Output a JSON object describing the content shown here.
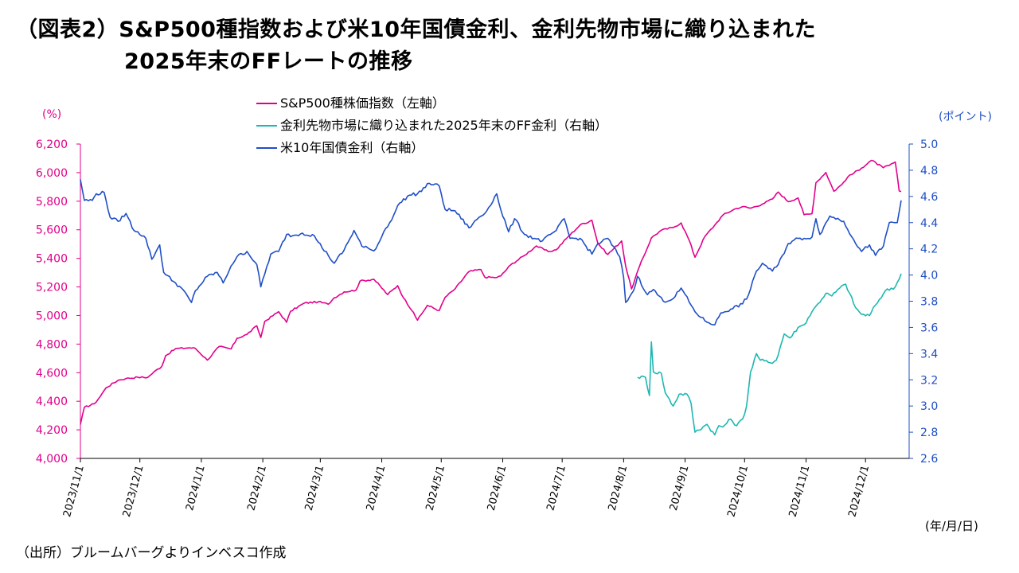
{
  "title": {
    "line1": "（図表2）S&P500種指数および米10年国債金利、金利先物市場に織り込まれた",
    "line2": "2025年末のFFレートの推移"
  },
  "source": "（出所）ブルームバーグよりインベスコ作成",
  "chart_data": {
    "type": "line",
    "left_axis": {
      "unit": "(%)",
      "min": 4000,
      "max": 6200,
      "ticks": [
        "4,000",
        "4,200",
        "4,400",
        "4,600",
        "4,800",
        "5,000",
        "5,200",
        "5,400",
        "5,600",
        "5,800",
        "6,000",
        "6,200"
      ],
      "color": "#E2008B"
    },
    "right_axis": {
      "unit": "(ポイント)",
      "min": 2.6,
      "max": 5.0,
      "ticks": [
        "2.6",
        "2.8",
        "3.0",
        "3.2",
        "3.4",
        "3.6",
        "3.8",
        "4.0",
        "4.2",
        "4.4",
        "4.6",
        "4.8",
        "5.0"
      ],
      "color": "#1F4FC6"
    },
    "x_axis": {
      "unit": "(年/月/日)",
      "start": "2023-11-01",
      "end": "2024-12-23",
      "tick_labels": [
        "2023/11/1",
        "2023/12/1",
        "2024/1/1",
        "2024/2/1",
        "2024/3/1",
        "2024/4/1",
        "2024/5/1",
        "2024/6/1",
        "2024/7/1",
        "2024/8/1",
        "2024/9/1",
        "2024/10/1",
        "2024/11/1",
        "2024/12/1"
      ],
      "tick_dates": [
        "2023-11-01",
        "2023-12-01",
        "2024-01-01",
        "2024-02-01",
        "2024-03-01",
        "2024-04-01",
        "2024-05-01",
        "2024-06-01",
        "2024-07-01",
        "2024-08-01",
        "2024-09-01",
        "2024-10-01",
        "2024-11-01",
        "2024-12-01"
      ]
    },
    "grid": false,
    "legend_position": "top",
    "series": [
      {
        "name": "S&P500種株価指数（左軸）",
        "axis": "left",
        "color": "#E2008B",
        "points": [
          [
            "2023-11-01",
            4237
          ],
          [
            "2023-11-03",
            4358
          ],
          [
            "2023-11-08",
            4382
          ],
          [
            "2023-11-10",
            4415
          ],
          [
            "2023-11-14",
            4495
          ],
          [
            "2023-11-20",
            4547
          ],
          [
            "2023-11-24",
            4559
          ],
          [
            "2023-11-30",
            4568
          ],
          [
            "2023-12-05",
            4567
          ],
          [
            "2023-12-08",
            4604
          ],
          [
            "2023-12-12",
            4643
          ],
          [
            "2023-12-14",
            4719
          ],
          [
            "2023-12-19",
            4768
          ],
          [
            "2023-12-26",
            4774
          ],
          [
            "2023-12-29",
            4770
          ],
          [
            "2024-01-04",
            4688
          ],
          [
            "2024-01-10",
            4783
          ],
          [
            "2024-01-16",
            4766
          ],
          [
            "2024-01-19",
            4840
          ],
          [
            "2024-01-24",
            4868
          ],
          [
            "2024-01-29",
            4928
          ],
          [
            "2024-01-31",
            4846
          ],
          [
            "2024-02-02",
            4959
          ],
          [
            "2024-02-09",
            5027
          ],
          [
            "2024-02-13",
            4953
          ],
          [
            "2024-02-15",
            5030
          ],
          [
            "2024-02-22",
            5087
          ],
          [
            "2024-02-29",
            5096
          ],
          [
            "2024-03-05",
            5079
          ],
          [
            "2024-03-08",
            5124
          ],
          [
            "2024-03-13",
            5165
          ],
          [
            "2024-03-19",
            5178
          ],
          [
            "2024-03-21",
            5241
          ],
          [
            "2024-03-28",
            5254
          ],
          [
            "2024-04-04",
            5147
          ],
          [
            "2024-04-09",
            5209
          ],
          [
            "2024-04-12",
            5123
          ],
          [
            "2024-04-17",
            5022
          ],
          [
            "2024-04-19",
            4967
          ],
          [
            "2024-04-24",
            5071
          ],
          [
            "2024-04-30",
            5035
          ],
          [
            "2024-05-03",
            5128
          ],
          [
            "2024-05-08",
            5187
          ],
          [
            "2024-05-15",
            5308
          ],
          [
            "2024-05-21",
            5321
          ],
          [
            "2024-05-23",
            5268
          ],
          [
            "2024-05-29",
            5266
          ],
          [
            "2024-05-31",
            5277
          ],
          [
            "2024-06-05",
            5354
          ],
          [
            "2024-06-12",
            5421
          ],
          [
            "2024-06-18",
            5487
          ],
          [
            "2024-06-24",
            5447
          ],
          [
            "2024-06-28",
            5460
          ],
          [
            "2024-07-03",
            5537
          ],
          [
            "2024-07-10",
            5633
          ],
          [
            "2024-07-16",
            5667
          ],
          [
            "2024-07-19",
            5505
          ],
          [
            "2024-07-24",
            5427
          ],
          [
            "2024-07-31",
            5522
          ],
          [
            "2024-08-02",
            5346
          ],
          [
            "2024-08-05",
            5186
          ],
          [
            "2024-08-09",
            5344
          ],
          [
            "2024-08-15",
            5543
          ],
          [
            "2024-08-20",
            5597
          ],
          [
            "2024-08-26",
            5616
          ],
          [
            "2024-08-30",
            5648
          ],
          [
            "2024-09-03",
            5528
          ],
          [
            "2024-09-06",
            5408
          ],
          [
            "2024-09-11",
            5554
          ],
          [
            "2024-09-16",
            5633
          ],
          [
            "2024-09-20",
            5702
          ],
          [
            "2024-09-26",
            5745
          ],
          [
            "2024-09-30",
            5762
          ],
          [
            "2024-10-04",
            5751
          ],
          [
            "2024-10-10",
            5780
          ],
          [
            "2024-10-15",
            5815
          ],
          [
            "2024-10-18",
            5864
          ],
          [
            "2024-10-23",
            5797
          ],
          [
            "2024-10-28",
            5823
          ],
          [
            "2024-10-31",
            5705
          ],
          [
            "2024-11-04",
            5712
          ],
          [
            "2024-11-06",
            5929
          ],
          [
            "2024-11-11",
            6001
          ],
          [
            "2024-11-15",
            5870
          ],
          [
            "2024-11-19",
            5916
          ],
          [
            "2024-11-22",
            5969
          ],
          [
            "2024-11-29",
            6032
          ],
          [
            "2024-12-04",
            6086
          ],
          [
            "2024-12-10",
            6034
          ],
          [
            "2024-12-13",
            6051
          ],
          [
            "2024-12-16",
            6074
          ],
          [
            "2024-12-18",
            5872
          ],
          [
            "2024-12-19",
            5867
          ]
        ]
      },
      {
        "name": "金利先物市場に織り込まれた2025年末のFF金利（右軸）",
        "axis": "right",
        "color": "#1CB8B0",
        "points": [
          [
            "2024-08-08",
            3.22
          ],
          [
            "2024-08-12",
            3.22
          ],
          [
            "2024-08-14",
            3.08
          ],
          [
            "2024-08-15",
            3.49
          ],
          [
            "2024-08-16",
            3.26
          ],
          [
            "2024-08-20",
            3.25
          ],
          [
            "2024-08-22",
            3.1
          ],
          [
            "2024-08-26",
            3.0
          ],
          [
            "2024-08-29",
            3.09
          ],
          [
            "2024-09-02",
            3.09
          ],
          [
            "2024-09-04",
            3.02
          ],
          [
            "2024-09-06",
            2.8
          ],
          [
            "2024-09-10",
            2.84
          ],
          [
            "2024-09-12",
            2.86
          ],
          [
            "2024-09-16",
            2.78
          ],
          [
            "2024-09-18",
            2.85
          ],
          [
            "2024-09-20",
            2.84
          ],
          [
            "2024-09-24",
            2.9
          ],
          [
            "2024-09-27",
            2.85
          ],
          [
            "2024-09-30",
            2.9
          ],
          [
            "2024-10-02",
            3.0
          ],
          [
            "2024-10-04",
            3.26
          ],
          [
            "2024-10-07",
            3.4
          ],
          [
            "2024-10-09",
            3.35
          ],
          [
            "2024-10-14",
            3.33
          ],
          [
            "2024-10-17",
            3.35
          ],
          [
            "2024-10-21",
            3.55
          ],
          [
            "2024-10-24",
            3.52
          ],
          [
            "2024-10-28",
            3.6
          ],
          [
            "2024-10-31",
            3.62
          ],
          [
            "2024-11-04",
            3.72
          ],
          [
            "2024-11-07",
            3.78
          ],
          [
            "2024-11-11",
            3.86
          ],
          [
            "2024-11-14",
            3.84
          ],
          [
            "2024-11-18",
            3.9
          ],
          [
            "2024-11-21",
            3.93
          ],
          [
            "2024-11-26",
            3.75
          ],
          [
            "2024-11-29",
            3.7
          ],
          [
            "2024-12-03",
            3.69
          ],
          [
            "2024-12-06",
            3.77
          ],
          [
            "2024-12-11",
            3.88
          ],
          [
            "2024-12-16",
            3.91
          ],
          [
            "2024-12-19",
            4.01
          ]
        ]
      },
      {
        "name": "米10年国債金利（右軸）",
        "axis": "right",
        "color": "#1F4FC6",
        "points": [
          [
            "2023-11-01",
            4.73
          ],
          [
            "2023-11-03",
            4.57
          ],
          [
            "2023-11-07",
            4.57
          ],
          [
            "2023-11-09",
            4.62
          ],
          [
            "2023-11-13",
            4.63
          ],
          [
            "2023-11-16",
            4.44
          ],
          [
            "2023-11-20",
            4.41
          ],
          [
            "2023-11-24",
            4.47
          ],
          [
            "2023-11-28",
            4.34
          ],
          [
            "2023-11-30",
            4.33
          ],
          [
            "2023-12-04",
            4.28
          ],
          [
            "2023-12-07",
            4.12
          ],
          [
            "2023-12-11",
            4.23
          ],
          [
            "2023-12-13",
            4.02
          ],
          [
            "2023-12-18",
            3.95
          ],
          [
            "2023-12-22",
            3.9
          ],
          [
            "2023-12-27",
            3.79
          ],
          [
            "2023-12-29",
            3.88
          ],
          [
            "2024-01-04",
            3.99
          ],
          [
            "2024-01-09",
            4.02
          ],
          [
            "2024-01-12",
            3.94
          ],
          [
            "2024-01-16",
            4.07
          ],
          [
            "2024-01-19",
            4.14
          ],
          [
            "2024-01-24",
            4.18
          ],
          [
            "2024-01-29",
            4.08
          ],
          [
            "2024-01-31",
            3.91
          ],
          [
            "2024-02-05",
            4.16
          ],
          [
            "2024-02-09",
            4.18
          ],
          [
            "2024-02-13",
            4.31
          ],
          [
            "2024-02-16",
            4.3
          ],
          [
            "2024-02-21",
            4.32
          ],
          [
            "2024-02-27",
            4.3
          ],
          [
            "2024-02-29",
            4.25
          ],
          [
            "2024-03-05",
            4.15
          ],
          [
            "2024-03-08",
            4.09
          ],
          [
            "2024-03-13",
            4.19
          ],
          [
            "2024-03-18",
            4.34
          ],
          [
            "2024-03-22",
            4.22
          ],
          [
            "2024-03-27",
            4.19
          ],
          [
            "2024-03-29",
            4.2
          ],
          [
            "2024-04-02",
            4.33
          ],
          [
            "2024-04-05",
            4.4
          ],
          [
            "2024-04-10",
            4.55
          ],
          [
            "2024-04-15",
            4.61
          ],
          [
            "2024-04-19",
            4.62
          ],
          [
            "2024-04-25",
            4.7
          ],
          [
            "2024-04-30",
            4.68
          ],
          [
            "2024-05-03",
            4.5
          ],
          [
            "2024-05-08",
            4.49
          ],
          [
            "2024-05-15",
            4.36
          ],
          [
            "2024-05-20",
            4.44
          ],
          [
            "2024-05-23",
            4.47
          ],
          [
            "2024-05-29",
            4.62
          ],
          [
            "2024-05-31",
            4.5
          ],
          [
            "2024-06-04",
            4.33
          ],
          [
            "2024-06-07",
            4.43
          ],
          [
            "2024-06-12",
            4.31
          ],
          [
            "2024-06-17",
            4.28
          ],
          [
            "2024-06-21",
            4.26
          ],
          [
            "2024-06-26",
            4.32
          ],
          [
            "2024-06-28",
            4.34
          ],
          [
            "2024-07-02",
            4.43
          ],
          [
            "2024-07-05",
            4.28
          ],
          [
            "2024-07-10",
            4.28
          ],
          [
            "2024-07-16",
            4.16
          ],
          [
            "2024-07-19",
            4.24
          ],
          [
            "2024-07-24",
            4.28
          ],
          [
            "2024-07-30",
            4.14
          ],
          [
            "2024-08-01",
            3.98
          ],
          [
            "2024-08-02",
            3.79
          ],
          [
            "2024-08-06",
            3.88
          ],
          [
            "2024-08-08",
            3.99
          ],
          [
            "2024-08-13",
            3.85
          ],
          [
            "2024-08-16",
            3.89
          ],
          [
            "2024-08-21",
            3.8
          ],
          [
            "2024-08-26",
            3.82
          ],
          [
            "2024-08-30",
            3.9
          ],
          [
            "2024-09-04",
            3.77
          ],
          [
            "2024-09-06",
            3.72
          ],
          [
            "2024-09-11",
            3.65
          ],
          [
            "2024-09-16",
            3.62
          ],
          [
            "2024-09-19",
            3.71
          ],
          [
            "2024-09-24",
            3.74
          ],
          [
            "2024-09-30",
            3.78
          ],
          [
            "2024-10-03",
            3.85
          ],
          [
            "2024-10-07",
            4.03
          ],
          [
            "2024-10-10",
            4.09
          ],
          [
            "2024-10-15",
            4.03
          ],
          [
            "2024-10-18",
            4.08
          ],
          [
            "2024-10-23",
            4.24
          ],
          [
            "2024-10-28",
            4.28
          ],
          [
            "2024-10-31",
            4.28
          ],
          [
            "2024-11-04",
            4.29
          ],
          [
            "2024-11-06",
            4.43
          ],
          [
            "2024-11-08",
            4.31
          ],
          [
            "2024-11-13",
            4.45
          ],
          [
            "2024-11-15",
            4.44
          ],
          [
            "2024-11-20",
            4.41
          ],
          [
            "2024-11-25",
            4.27
          ],
          [
            "2024-11-29",
            4.18
          ],
          [
            "2024-12-03",
            4.23
          ],
          [
            "2024-12-06",
            4.15
          ],
          [
            "2024-12-10",
            4.22
          ],
          [
            "2024-12-13",
            4.4
          ],
          [
            "2024-12-17",
            4.4
          ],
          [
            "2024-12-19",
            4.57
          ]
        ]
      }
    ]
  }
}
